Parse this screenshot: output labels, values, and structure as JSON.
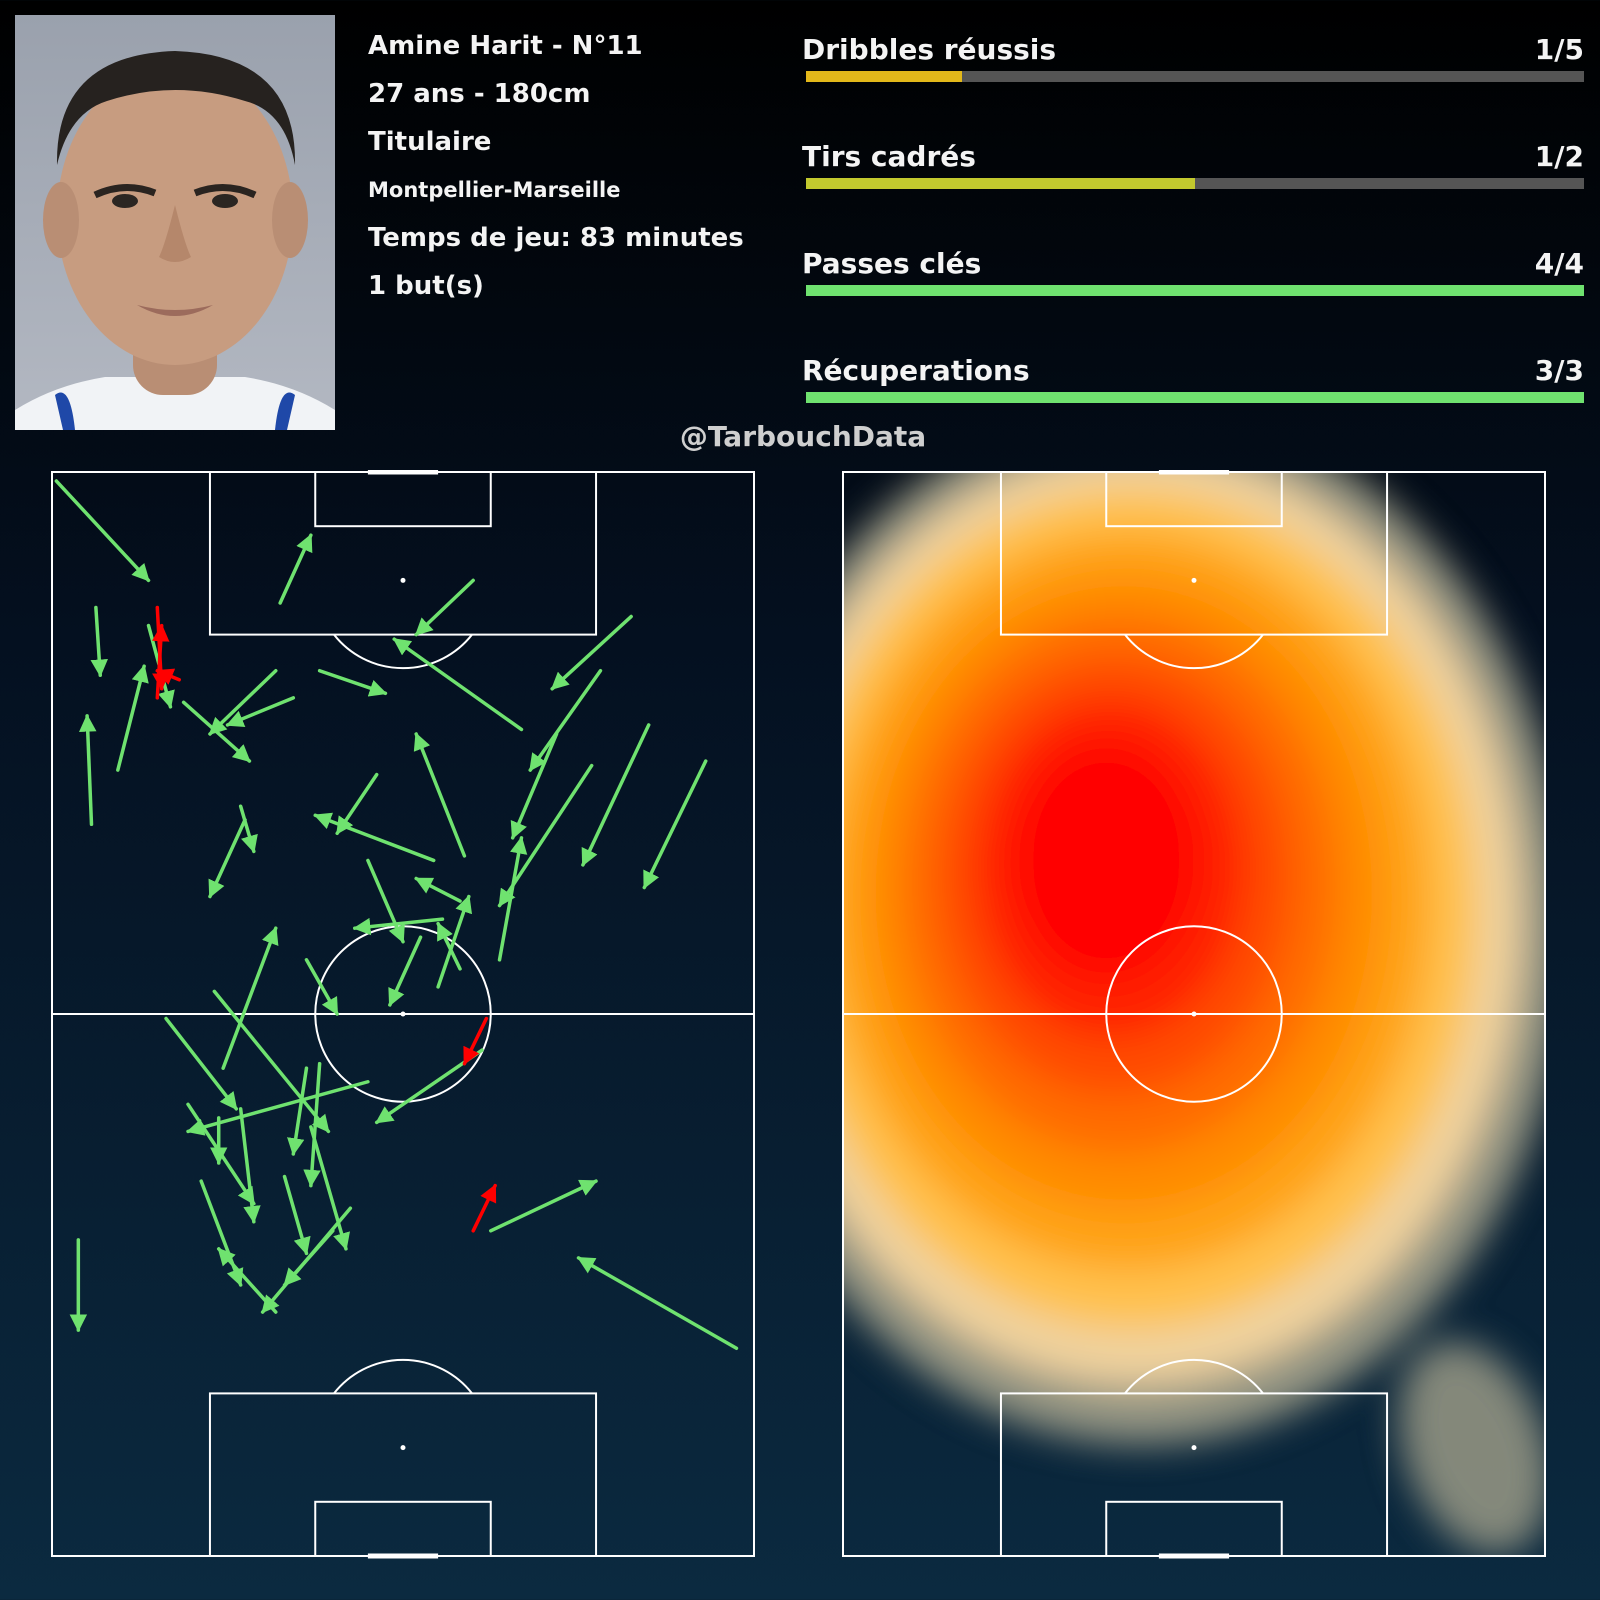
{
  "player": {
    "name_line": "Amine Harit - N°11",
    "age_height": "27 ans - 180cm",
    "status": "Titulaire",
    "match": "Montpellier-Marseille",
    "playing_time": "Temps de jeu: 83 minutes",
    "goals": "1 but(s)"
  },
  "watermark": "@TarbouchData",
  "colors": {
    "success": "#6fe26f",
    "fail": "#ff0000",
    "pitch_lines": "#ffffff",
    "bar_track": "#555555"
  },
  "chart_data": [
    {
      "type": "bar",
      "title": "",
      "orientation": "horizontal",
      "categories": [
        "Dribbles réussis",
        "Tirs cadrés",
        "Passes clés",
        "Récuperations"
      ],
      "labels": [
        "1/5",
        "1/2",
        "4/4",
        "3/3"
      ],
      "success": [
        1,
        1,
        4,
        3
      ],
      "attempts": [
        5,
        2,
        4,
        3
      ],
      "ratio": [
        0.2,
        0.5,
        1.0,
        1.0
      ],
      "colors": [
        "#e3b81a",
        "#c2c92e",
        "#6fe26f",
        "#6fe26f"
      ],
      "xlim": [
        0,
        1
      ]
    },
    {
      "type": "pitch-arrows",
      "title": "",
      "pitch": {
        "length": 120,
        "width": 80
      },
      "legend": "",
      "arrows_success": [
        [
          0.5,
          1,
          11,
          12
        ],
        [
          5,
          15,
          5.5,
          22.5
        ],
        [
          4.5,
          39,
          4,
          27
        ],
        [
          7.5,
          33,
          10.5,
          21.5
        ],
        [
          11,
          17,
          13.5,
          26
        ],
        [
          15,
          25.5,
          22.5,
          32
        ],
        [
          27.5,
          25,
          20,
          28
        ],
        [
          26,
          14.5,
          29.5,
          7
        ],
        [
          48,
          12,
          41.5,
          18
        ],
        [
          66,
          16,
          57,
          24
        ],
        [
          53.5,
          28.5,
          39,
          18.5
        ],
        [
          62.5,
          22,
          54.5,
          33
        ],
        [
          57.5,
          29,
          52.5,
          40.5
        ],
        [
          61.5,
          32.5,
          51,
          48
        ],
        [
          68,
          28,
          60.5,
          43.5
        ],
        [
          74.5,
          32,
          67.5,
          46
        ],
        [
          47,
          42.5,
          41.5,
          29
        ],
        [
          30.5,
          22,
          38,
          24.5
        ],
        [
          25.5,
          22,
          18,
          29
        ],
        [
          43.5,
          43,
          30,
          38
        ],
        [
          37,
          33.5,
          32.5,
          40
        ],
        [
          29,
          54,
          32.5,
          60
        ],
        [
          36,
          43,
          40,
          52
        ],
        [
          46.5,
          55,
          44,
          50
        ],
        [
          42,
          51.5,
          38.5,
          59
        ],
        [
          44,
          57,
          47.5,
          47
        ],
        [
          46.5,
          47.5,
          41.5,
          45
        ],
        [
          44.5,
          49.5,
          34.5,
          50.5
        ],
        [
          19.5,
          66,
          25.5,
          50.5
        ],
        [
          21.5,
          37,
          23,
          42
        ],
        [
          22,
          38.5,
          18,
          47
        ],
        [
          51,
          54,
          53.5,
          40.5
        ],
        [
          19,
          71.5,
          19,
          76.5
        ],
        [
          29,
          66,
          27.5,
          75.5
        ],
        [
          30.5,
          65.5,
          29.5,
          79
        ],
        [
          18.5,
          57.5,
          31.5,
          73
        ],
        [
          13,
          60.5,
          21,
          70.5
        ],
        [
          17,
          78.5,
          21.5,
          90
        ],
        [
          29.5,
          72.5,
          33.5,
          86
        ],
        [
          26.5,
          78,
          29,
          86.5
        ],
        [
          21.5,
          70.5,
          23,
          83
        ],
        [
          34,
          81.5,
          24,
          93
        ],
        [
          32,
          84,
          26.5,
          90
        ],
        [
          15.5,
          70,
          23,
          81
        ],
        [
          25.5,
          93,
          19,
          86
        ],
        [
          36,
          67.5,
          15.5,
          73
        ],
        [
          49,
          64,
          37,
          72
        ],
        [
          50,
          84,
          62,
          78.5
        ],
        [
          3,
          85,
          3,
          95
        ],
        [
          78,
          97,
          60,
          87
        ]
      ],
      "arrows_fail": [
        [
          12,
          15,
          12.5,
          24
        ],
        [
          14.5,
          23,
          12,
          22
        ],
        [
          12,
          25,
          12.5,
          17
        ],
        [
          49.5,
          60.5,
          47,
          65.5
        ],
        [
          48,
          84,
          50.5,
          79
        ]
      ]
    },
    {
      "type": "heatmap",
      "title": "",
      "pitch": {
        "length": 120,
        "width": 80
      },
      "peak": [
        30,
        43
      ],
      "colormap": [
        "#9a9a86",
        "#f4d6a0",
        "#ffc04a",
        "#ffa114",
        "#ff8a00",
        "#ff6a00",
        "#ff4a00",
        "#ff2200",
        "#ff0000"
      ]
    }
  ]
}
